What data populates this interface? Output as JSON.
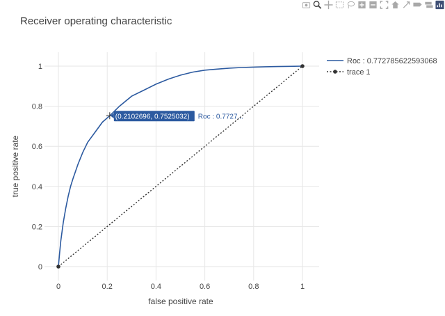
{
  "modebar": {
    "buttons": [
      {
        "name": "camera-icon"
      },
      {
        "name": "zoom-icon"
      },
      {
        "name": "pan-icon"
      },
      {
        "name": "box-select-icon"
      },
      {
        "name": "lasso-select-icon"
      },
      {
        "name": "zoom-in-icon"
      },
      {
        "name": "zoom-out-icon"
      },
      {
        "name": "autoscale-icon"
      },
      {
        "name": "reset-axes-icon"
      },
      {
        "name": "spike-lines-icon"
      },
      {
        "name": "hover-closest-icon"
      },
      {
        "name": "hover-compare-icon"
      },
      {
        "name": "plotly-logo-icon"
      }
    ]
  },
  "colors": {
    "roc": "#2c5aa0",
    "diagonal": "#333333",
    "grid": "#e6e6e6",
    "text": "#444444",
    "hover_bg": "#2c5aa0"
  },
  "chart_data": {
    "type": "line",
    "title": "Receiver operating characteristic",
    "xlabel": "false positive rate",
    "ylabel": "true positive rate",
    "xlim": [
      0,
      1
    ],
    "ylim": [
      0,
      1
    ],
    "xticks": [
      "0",
      "0.2",
      "0.4",
      "0.6",
      "0.8",
      "1"
    ],
    "yticks": [
      "0",
      "0.2",
      "0.4",
      "0.6",
      "0.8",
      "1"
    ],
    "grid": true,
    "legend_position": "top-right",
    "series": [
      {
        "name": "Roc : 0.772785622593068",
        "mode": "lines",
        "x": [
          0,
          0.005,
          0.01,
          0.02,
          0.03,
          0.04,
          0.05,
          0.06,
          0.08,
          0.1,
          0.12,
          0.15,
          0.18,
          0.2102696,
          0.25,
          0.3,
          0.35,
          0.4,
          0.45,
          0.5,
          0.55,
          0.6,
          0.65,
          0.7,
          0.75,
          0.8,
          0.85,
          0.9,
          0.95,
          1.0
        ],
        "y": [
          0,
          0.07,
          0.13,
          0.22,
          0.29,
          0.35,
          0.4,
          0.44,
          0.51,
          0.57,
          0.62,
          0.67,
          0.72,
          0.7525032,
          0.8,
          0.85,
          0.88,
          0.91,
          0.935,
          0.955,
          0.97,
          0.98,
          0.985,
          0.99,
          0.993,
          0.995,
          0.997,
          0.998,
          0.999,
          1.0
        ]
      },
      {
        "name": "trace 1",
        "mode": "lines+markers",
        "dash": "dot",
        "x": [
          0,
          1
        ],
        "y": [
          0,
          1
        ]
      }
    ],
    "hover": {
      "x": 0.2102696,
      "y": 0.7525032,
      "label": "(0.2102696, 0.7525032)",
      "name": "Roc : 0.7727..."
    }
  }
}
